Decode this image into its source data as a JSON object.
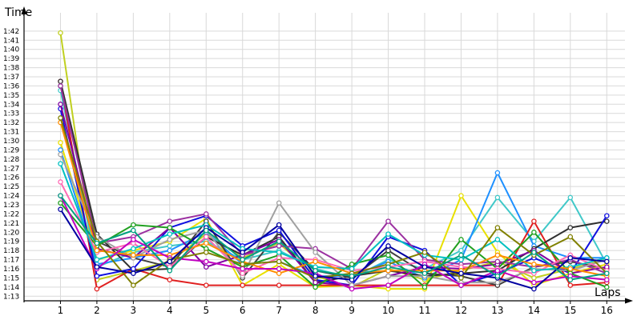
{
  "chart_data": {
    "type": "line",
    "ylabel": "Time",
    "xlabel": "Laps",
    "x": [
      1,
      2,
      3,
      4,
      5,
      6,
      7,
      8,
      9,
      10,
      11,
      12,
      13,
      14,
      15,
      16
    ],
    "y_ticks": [
      "1:13",
      "1:14",
      "1:15",
      "1:16",
      "1:17",
      "1:18",
      "1:19",
      "1:20",
      "1:21",
      "1:22",
      "1:23",
      "1:24",
      "1:25",
      "1:26",
      "1:27",
      "1:28",
      "1:29",
      "1:30",
      "1:31",
      "1:32",
      "1:33",
      "1:34",
      "1:35",
      "1:36",
      "1:37",
      "1:38",
      "1:39",
      "1:40",
      "1:41",
      "1:42"
    ],
    "ylim": [
      72.5,
      104
    ],
    "xlim": [
      0,
      16.5
    ],
    "grid": true,
    "y_unit": "seconds past 1 minute",
    "series": [
      {
        "color": "#c0d020",
        "values": [
          101.8,
          74.8,
          75.8,
          76.8,
          79.8,
          77.2,
          78.8,
          75.2,
          74.0,
          76.0,
          74.8,
          75.8,
          76.8,
          75.0,
          76.0,
          77.0
        ]
      },
      {
        "color": "#40c8c8",
        "values": [
          95.5,
          76.2,
          77.8,
          78.5,
          79.0,
          77.0,
          78.0,
          76.0,
          75.0,
          77.0,
          76.0,
          78.0,
          83.8,
          79.0,
          83.8,
          76.5
        ]
      },
      {
        "color": "#e8e000",
        "values": [
          89.8,
          77.0,
          78.0,
          79.0,
          81.5,
          74.2,
          76.5,
          74.0,
          74.2,
          73.8,
          73.8,
          84.0,
          77.8,
          74.2,
          75.5,
          76.5
        ]
      },
      {
        "color": "#1e90ff",
        "values": [
          89.0,
          76.5,
          77.2,
          78.0,
          80.0,
          76.5,
          76.8,
          75.2,
          75.2,
          76.8,
          75.0,
          77.0,
          86.5,
          78.5,
          77.2,
          77.2
        ]
      },
      {
        "color": "#e02020",
        "values": [
          96.5,
          73.8,
          76.0,
          74.8,
          74.2,
          74.2,
          74.2,
          74.2,
          74.2,
          74.2,
          74.2,
          74.2,
          74.2,
          81.2,
          74.2,
          74.5
        ]
      },
      {
        "color": "#303030",
        "values": [
          96.5,
          79.8,
          75.8,
          76.0,
          79.5,
          77.5,
          79.5,
          74.5,
          75.2,
          75.8,
          75.2,
          75.5,
          75.8,
          78.2,
          80.5,
          81.2
        ]
      },
      {
        "color": "#404040",
        "values": [
          96.0,
          79.0,
          77.2,
          76.2,
          81.2,
          75.0,
          80.0,
          75.8,
          75.0,
          78.0,
          75.5,
          75.2,
          74.2,
          76.2,
          76.8,
          76.0
        ]
      },
      {
        "color": "#1010e0",
        "values": [
          93.5,
          75.2,
          76.0,
          80.5,
          81.8,
          78.5,
          80.2,
          74.8,
          74.2,
          79.5,
          78.0,
          74.2,
          75.5,
          77.2,
          75.5,
          81.8
        ]
      },
      {
        "color": "#8000a0",
        "values": [
          94.0,
          78.2,
          77.2,
          80.5,
          76.2,
          77.5,
          79.2,
          74.5,
          74.2,
          75.2,
          76.2,
          76.0,
          76.5,
          78.0,
          75.5,
          76.2
        ]
      },
      {
        "color": "#9b30a0",
        "values": [
          96.0,
          78.8,
          79.5,
          81.2,
          82.0,
          77.5,
          78.5,
          78.2,
          76.0,
          81.2,
          77.0,
          76.5,
          76.8,
          76.2,
          77.0,
          75.5
        ]
      },
      {
        "color": "#a0a0a0",
        "values": [
          88.5,
          79.5,
          77.2,
          79.2,
          80.2,
          75.2,
          83.2,
          77.8,
          74.2,
          75.2,
          75.2,
          74.5,
          74.5,
          76.0,
          75.8,
          77.0
        ]
      },
      {
        "color": "#20a020",
        "values": [
          83.2,
          78.5,
          80.8,
          80.5,
          78.2,
          76.2,
          77.5,
          74.0,
          76.5,
          77.5,
          74.0,
          79.2,
          76.0,
          80.0,
          75.5,
          74.0
        ]
      },
      {
        "color": "#ff69b4",
        "values": [
          85.5,
          77.8,
          78.8,
          76.2,
          79.5,
          75.5,
          77.2,
          77.0,
          75.8,
          76.2,
          76.8,
          76.2,
          76.0,
          75.5,
          77.5,
          75.8
        ]
      },
      {
        "color": "#00c0c0",
        "values": [
          87.5,
          77.0,
          78.2,
          79.8,
          80.8,
          78.2,
          77.8,
          76.2,
          76.0,
          79.8,
          77.5,
          77.0,
          79.2,
          75.8,
          76.2,
          77.2
        ]
      },
      {
        "color": "#ff8c00",
        "values": [
          92.0,
          78.0,
          77.5,
          77.5,
          78.8,
          76.8,
          75.5,
          76.8,
          75.5,
          75.8,
          75.8,
          75.8,
          77.5,
          76.5,
          76.0,
          75.2
        ]
      },
      {
        "color": "#c000c0",
        "values": [
          84.0,
          76.0,
          79.2,
          77.2,
          76.8,
          76.0,
          76.0,
          75.5,
          73.8,
          74.2,
          76.5,
          74.2,
          75.8,
          74.5,
          75.2,
          74.8
        ]
      },
      {
        "color": "#808000",
        "values": [
          92.5,
          79.0,
          74.2,
          77.0,
          77.8,
          76.5,
          76.8,
          75.0,
          75.5,
          76.5,
          77.8,
          75.0,
          80.5,
          77.5,
          79.5,
          75.5
        ]
      },
      {
        "color": "#0000a0",
        "values": [
          82.5,
          76.2,
          75.5,
          76.8,
          80.5,
          77.8,
          80.8,
          75.2,
          74.8,
          78.5,
          76.2,
          75.5,
          75.0,
          73.8,
          77.2,
          76.8
        ]
      },
      {
        "color": "#00a080",
        "values": [
          84.0,
          78.8,
          80.2,
          75.8,
          80.2,
          77.0,
          79.0,
          75.8,
          75.2,
          76.2,
          75.5,
          77.5,
          75.2,
          77.8,
          74.8,
          75.5
        ]
      }
    ]
  }
}
